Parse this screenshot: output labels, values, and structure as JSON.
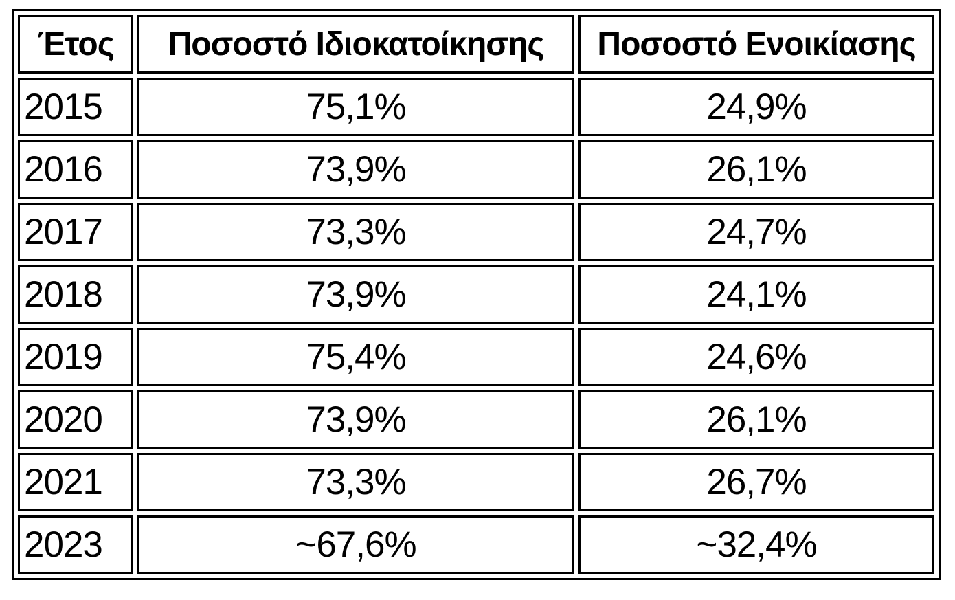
{
  "colors": {
    "background": "#ffffff",
    "border": "#000000",
    "text": "#000000"
  },
  "chart_data": {
    "type": "table",
    "columns": [
      "Έτος",
      "Ποσοστό Ιδιοκατοίκησης",
      "Ποσοστό Ενοικίασης"
    ],
    "rows": [
      [
        "2015",
        "75,1%",
        "24,9%"
      ],
      [
        "2016",
        "73,9%",
        "26,1%"
      ],
      [
        "2017",
        "73,3%",
        "24,7%"
      ],
      [
        "2018",
        "73,9%",
        "24,1%"
      ],
      [
        "2019",
        "75,4%",
        "24,6%"
      ],
      [
        "2020",
        "73,9%",
        "26,1%"
      ],
      [
        "2021",
        "73,3%",
        "26,7%"
      ],
      [
        "2023",
        "~67,6%",
        "~32,4%"
      ]
    ]
  }
}
